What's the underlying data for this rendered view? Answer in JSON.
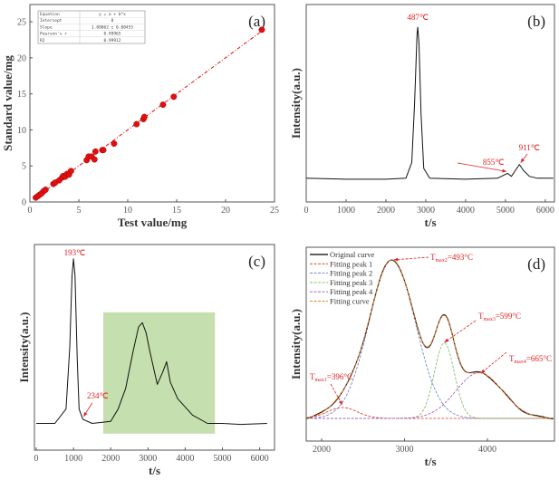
{
  "chart_data": [
    {
      "panel": "(a)",
      "type": "scatter",
      "xlabel": "Test value/mg",
      "ylabel": "Standard value/mg",
      "xlim": [
        0,
        25
      ],
      "ylim": [
        0,
        27.4
      ],
      "xticks": [
        0,
        5,
        10,
        15,
        20,
        25
      ],
      "yticks": [
        0,
        5,
        10,
        15,
        20,
        25
      ],
      "color": "#e01010",
      "points": [
        [
          0.6,
          0.6
        ],
        [
          0.8,
          0.8
        ],
        [
          1.0,
          1.0
        ],
        [
          1.2,
          1.2
        ],
        [
          1.4,
          1.5
        ],
        [
          1.6,
          1.7
        ],
        [
          2.4,
          2.5
        ],
        [
          2.6,
          2.7
        ],
        [
          3.0,
          3.0
        ],
        [
          3.3,
          3.4
        ],
        [
          3.4,
          3.6
        ],
        [
          3.6,
          3.5
        ],
        [
          3.8,
          3.9
        ],
        [
          4.0,
          3.8
        ],
        [
          4.2,
          4.3
        ],
        [
          5.8,
          5.8
        ],
        [
          6.0,
          6.3
        ],
        [
          6.3,
          6.3
        ],
        [
          6.6,
          5.9
        ],
        [
          6.7,
          7.0
        ],
        [
          7.4,
          7.2
        ],
        [
          7.5,
          7.2
        ],
        [
          8.6,
          8.1
        ],
        [
          10.9,
          10.8
        ],
        [
          11.6,
          11.5
        ],
        [
          11.7,
          11.8
        ],
        [
          13.6,
          13.5
        ],
        [
          14.7,
          14.6
        ],
        [
          23.7,
          23.9
        ]
      ],
      "fit_table": [
        [
          "Equation",
          "y = a + b*x"
        ],
        [
          "Intercept",
          "0"
        ],
        [
          "Slope",
          "1.00062 ± 0.00455"
        ],
        [
          "Pearson's r",
          "0.99965"
        ],
        [
          "R2",
          "0.99912"
        ]
      ]
    },
    {
      "panel": "(b)",
      "type": "line",
      "xlabel": "t/s",
      "ylabel": "Intensity(a.u.)",
      "xlim": [
        0,
        6230
      ],
      "ylim": [
        0,
        1
      ],
      "xticks": [
        0,
        1000,
        2000,
        3000,
        4000,
        5000,
        6000
      ],
      "points": [
        [
          0,
          0.12
        ],
        [
          1000,
          0.115
        ],
        [
          2000,
          0.115
        ],
        [
          2500,
          0.12
        ],
        [
          2650,
          0.2
        ],
        [
          2720,
          0.5
        ],
        [
          2780,
          0.85
        ],
        [
          2800,
          0.885
        ],
        [
          2830,
          0.8
        ],
        [
          2880,
          0.45
        ],
        [
          2950,
          0.17
        ],
        [
          3100,
          0.12
        ],
        [
          4000,
          0.115
        ],
        [
          4800,
          0.12
        ],
        [
          5050,
          0.145
        ],
        [
          5150,
          0.13
        ],
        [
          5250,
          0.16
        ],
        [
          5350,
          0.19
        ],
        [
          5450,
          0.16
        ],
        [
          5600,
          0.13
        ],
        [
          5800,
          0.12
        ],
        [
          6200,
          0.12
        ]
      ],
      "annotations": [
        {
          "text": "487℃",
          "t": 2800
        },
        {
          "text": "855℃",
          "t": 5050
        },
        {
          "text": "911℃",
          "t": 5350
        }
      ]
    },
    {
      "panel": "(c)",
      "type": "line",
      "xlabel": "t/s",
      "ylabel": "Intensity(a.u.)",
      "xlim": [
        -50,
        6400
      ],
      "ylim": [
        0,
        1
      ],
      "xticks": [
        0,
        1000,
        2000,
        3000,
        4000,
        5000,
        6000
      ],
      "highlight": {
        "t_range": [
          1800,
          4800
        ],
        "y_range": [
          0.08,
          0.67
        ],
        "color": "#c5dfae"
      },
      "points": [
        [
          0,
          0.13
        ],
        [
          500,
          0.13
        ],
        [
          800,
          0.2
        ],
        [
          900,
          0.5
        ],
        [
          960,
          0.85
        ],
        [
          1000,
          0.93
        ],
        [
          1040,
          0.85
        ],
        [
          1100,
          0.45
        ],
        [
          1150,
          0.2
        ],
        [
          1250,
          0.15
        ],
        [
          1500,
          0.13
        ],
        [
          2000,
          0.14
        ],
        [
          2200,
          0.2
        ],
        [
          2400,
          0.3
        ],
        [
          2600,
          0.48
        ],
        [
          2750,
          0.6
        ],
        [
          2850,
          0.62
        ],
        [
          2950,
          0.57
        ],
        [
          3050,
          0.48
        ],
        [
          3250,
          0.32
        ],
        [
          3400,
          0.38
        ],
        [
          3500,
          0.43
        ],
        [
          3600,
          0.33
        ],
        [
          3800,
          0.25
        ],
        [
          4200,
          0.17
        ],
        [
          4600,
          0.13
        ],
        [
          5000,
          0.13
        ],
        [
          5500,
          0.125
        ],
        [
          6200,
          0.13
        ]
      ],
      "annotations": [
        {
          "text": "193℃",
          "t": 1000
        },
        {
          "text": "234℃",
          "t": 1250
        }
      ]
    },
    {
      "panel": "(d)",
      "type": "line",
      "xlabel": "t/s",
      "ylabel": "Intensity(a.u.)",
      "xlim": [
        1814,
        4808
      ],
      "ylim": [
        0,
        1
      ],
      "xticks": [
        2000,
        3000,
        4000
      ],
      "baseline": 0.117,
      "peaks": [
        {
          "name": "Fitting peak 1",
          "center": 2250,
          "height": 0.056,
          "sigma": 180,
          "color": "#e03020",
          "label": "T",
          "sub": "max1",
          "value": "=396°C"
        },
        {
          "name": "Fitting peak 2",
          "center": 2850,
          "height": 0.818,
          "sigma": 280,
          "color": "#5a7fd0",
          "label": "T",
          "sub": "max2",
          "value": "=493°C"
        },
        {
          "name": "Fitting peak 3",
          "center": 3480,
          "height": 0.39,
          "sigma": 120,
          "color": "#7ab85a",
          "label": "T",
          "sub": "max3",
          "value": "=599°C"
        },
        {
          "name": "Fitting peak 4",
          "center": 3900,
          "height": 0.235,
          "sigma": 280,
          "color": "#a050c0",
          "label": "T",
          "sub": "max4",
          "value": "=665°C"
        }
      ],
      "legend": [
        {
          "name": "Original curve",
          "color": "#000000"
        },
        {
          "name": "Fitting peak 1",
          "color": "#e03020"
        },
        {
          "name": "Fitting peak 2",
          "color": "#5a7fd0"
        },
        {
          "name": "Fitting peak 3",
          "color": "#7ab85a"
        },
        {
          "name": "Fitting peak 4",
          "color": "#a050c0"
        },
        {
          "name": "Fitting curve",
          "color": "#f08020"
        }
      ]
    }
  ]
}
